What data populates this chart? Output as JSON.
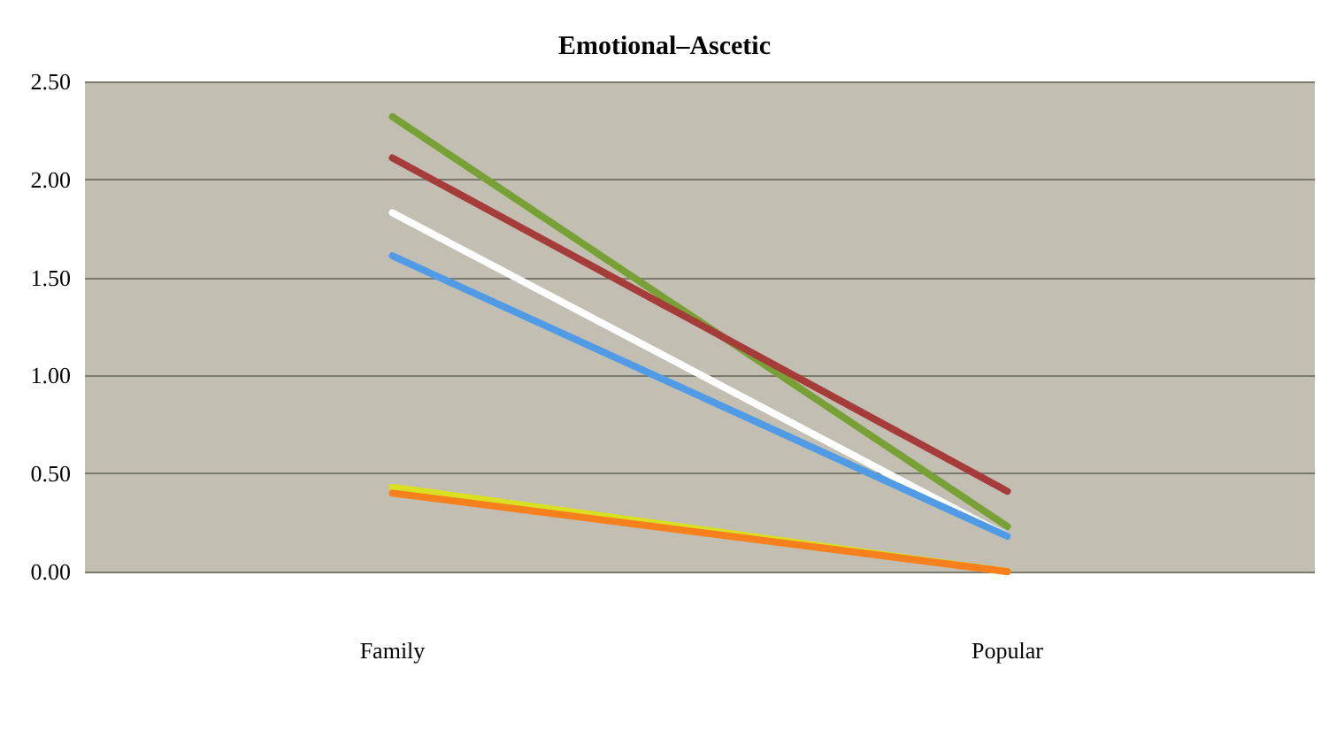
{
  "chart_data": {
    "type": "line",
    "title": "Emotional–Ascetic",
    "categories": [
      "Family",
      "Popular"
    ],
    "series": [
      {
        "color": "#77a035",
        "values": [
          2.32,
          0.23
        ]
      },
      {
        "color": "#a63c3a",
        "values": [
          2.11,
          0.41
        ]
      },
      {
        "color": "#ffffff",
        "values": [
          1.83,
          0.18
        ]
      },
      {
        "color": "#4f9be6",
        "values": [
          1.61,
          0.18
        ]
      },
      {
        "color": "#d9e021",
        "values": [
          0.43,
          0.0
        ]
      },
      {
        "color": "#f7801e",
        "values": [
          0.4,
          0.0
        ]
      }
    ],
    "ylim": [
      0,
      2.5
    ],
    "yticks": [
      {
        "value": 0,
        "label": "0.00"
      },
      {
        "value": 0.5,
        "label": "0.50"
      },
      {
        "value": 1,
        "label": "1.00"
      },
      {
        "value": 1.5,
        "label": "1.50"
      },
      {
        "value": 2,
        "label": "2.00"
      },
      {
        "value": 2.5,
        "label": "2.50"
      }
    ],
    "grid": "y",
    "marker": "none",
    "line_style": "solid"
  }
}
